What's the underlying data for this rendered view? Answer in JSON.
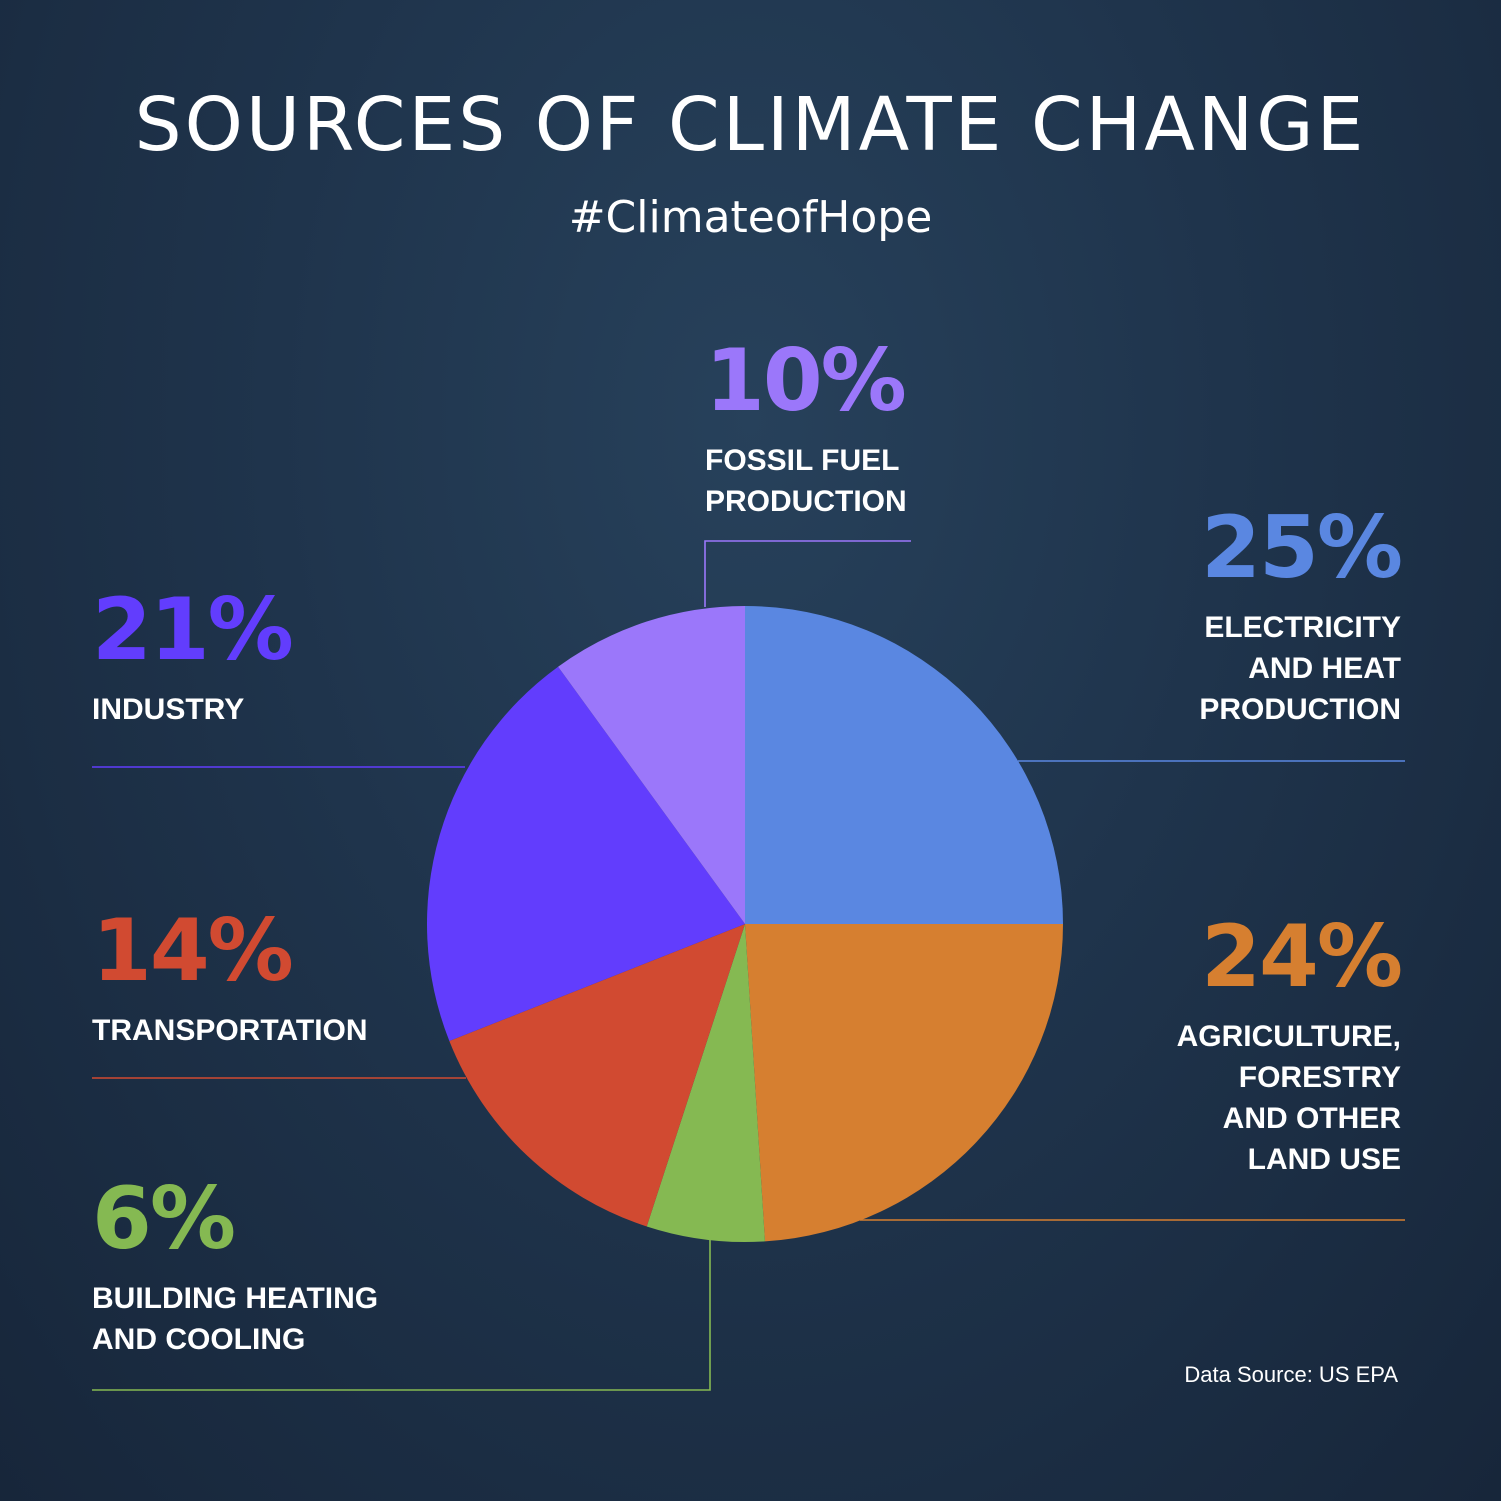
{
  "title": "SOURCES OF CLIMATE CHANGE",
  "subtitle": "#ClimateofHope",
  "source": "Data Source: US EPA",
  "chart_data": {
    "type": "pie",
    "title": "SOURCES OF CLIMATE CHANGE",
    "start_angle_deg": 0,
    "direction": "clockwise",
    "slices": [
      {
        "label": "ELECTRICITY AND HEAT PRODUCTION",
        "value": 25,
        "pct_label": "25%",
        "color": "#5a87e1"
      },
      {
        "label": "AGRICULTURE, FORESTRY AND OTHER LAND USE",
        "value": 24,
        "pct_label": "24%",
        "color": "#d67f30"
      },
      {
        "label": "BUILDING HEATING AND COOLING",
        "value": 6,
        "pct_label": "6%",
        "color": "#85b952"
      },
      {
        "label": "TRANSPORTATION",
        "value": 14,
        "pct_label": "14%",
        "color": "#d14a31"
      },
      {
        "label": "INDUSTRY",
        "value": 21,
        "pct_label": "21%",
        "color": "#623dfd"
      },
      {
        "label": "FOSSIL FUEL PRODUCTION",
        "value": 10,
        "pct_label": "10%",
        "color": "#9b77fa"
      }
    ]
  },
  "labels": {
    "electricity": {
      "pct": "25%",
      "text": "ELECTRICITY\nAND HEAT\nPRODUCTION",
      "color": "#5a87e1"
    },
    "agriculture": {
      "pct": "24%",
      "text": "AGRICULTURE,\nFORESTRY\nAND OTHER\nLAND USE",
      "color": "#d67f30"
    },
    "building": {
      "pct": "6%",
      "text": "BUILDING HEATING\nAND COOLING",
      "color": "#85b952"
    },
    "transportation": {
      "pct": "14%",
      "text": "TRANSPORTATION",
      "color": "#d14a31"
    },
    "industry": {
      "pct": "21%",
      "text": "INDUSTRY",
      "color": "#623dfd"
    },
    "fossil": {
      "pct": "10%",
      "text": "FOSSIL FUEL\nPRODUCTION",
      "color": "#9b77fa"
    }
  }
}
